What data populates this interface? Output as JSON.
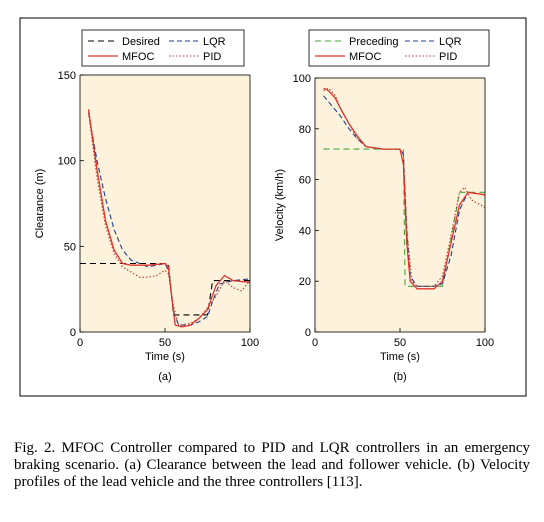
{
  "caption": "Fig. 2.  MFOC Controller compared to PID and LQR controllers in an emergency braking scenario. (a) Clearance between the lead and follower vehicle. (b) Velocity profiles of the lead vehicle and the three controllers [113].",
  "colors": {
    "plot_bg": "#fdf3dc",
    "desired": "#000000",
    "lqr": "#1f3f91",
    "mfoc": "#e0342a",
    "pid": "#b93a30",
    "preceding": "#49a63a"
  },
  "chart_data": [
    {
      "type": "line",
      "panel_label": "(a)",
      "xlabel": "Time (s)",
      "ylabel": "Clearance (m)",
      "xlim": [
        0,
        100
      ],
      "ylim": [
        0,
        150
      ],
      "xticks": [
        0,
        50,
        100
      ],
      "yticks": [
        0,
        50,
        100,
        150
      ],
      "grid": false,
      "legend_position": "top",
      "series": [
        {
          "name": "Desired",
          "color": "#000000",
          "dash": "6,4",
          "x": [
            0,
            52,
            55,
            75,
            78,
            100
          ],
          "y": [
            40,
            40,
            10,
            10,
            30,
            30
          ]
        },
        {
          "name": "LQR",
          "color": "#1f3f91",
          "dash": "5,3",
          "x": [
            5,
            10,
            15,
            20,
            25,
            30,
            40,
            45,
            50,
            52,
            55,
            58,
            65,
            70,
            75,
            78,
            82,
            90,
            100
          ],
          "y": [
            128,
            100,
            78,
            60,
            48,
            42,
            38,
            39,
            40,
            36,
            12,
            4,
            4,
            6,
            9,
            18,
            28,
            30,
            31
          ]
        },
        {
          "name": "MFOC",
          "color": "#e0342a",
          "dash": "",
          "x": [
            5,
            10,
            15,
            20,
            25,
            30,
            40,
            50,
            52,
            54,
            56,
            60,
            65,
            70,
            75,
            80,
            85,
            90,
            100
          ],
          "y": [
            130,
            95,
            65,
            48,
            40,
            39,
            39,
            40,
            38,
            20,
            4,
            3,
            4,
            8,
            13,
            27,
            33,
            30,
            29
          ]
        },
        {
          "name": "PID",
          "color": "#b93a30",
          "dash": "1.5,2",
          "x": [
            5,
            10,
            15,
            20,
            25,
            30,
            35,
            40,
            45,
            50,
            52,
            55,
            58,
            65,
            70,
            75,
            80,
            85,
            90,
            95,
            100
          ],
          "y": [
            128,
            90,
            62,
            46,
            38,
            35,
            32,
            32,
            33,
            36,
            34,
            15,
            4,
            5,
            8,
            14,
            21,
            30,
            26,
            24,
            30
          ]
        }
      ]
    },
    {
      "type": "line",
      "panel_label": "(b)",
      "xlabel": "Time (s)",
      "ylabel": "Velocity (km/h)",
      "xlim": [
        0,
        100
      ],
      "ylim": [
        0,
        100
      ],
      "xticks": [
        0,
        50,
        100
      ],
      "yticks": [
        0,
        20,
        40,
        60,
        80,
        100
      ],
      "grid": false,
      "legend_position": "top",
      "series": [
        {
          "name": "Preceding",
          "color": "#49a63a",
          "dash": "6,4",
          "x": [
            5,
            52,
            53,
            75,
            85,
            100
          ],
          "y": [
            72,
            72,
            18,
            18,
            55,
            55
          ]
        },
        {
          "name": "LQR",
          "color": "#1f3f91",
          "dash": "5,3",
          "x": [
            5,
            10,
            15,
            20,
            25,
            30,
            40,
            50,
            52,
            54,
            56,
            60,
            70,
            75,
            80,
            85,
            90,
            100
          ],
          "y": [
            93,
            89,
            85,
            80,
            76,
            73,
            72,
            72,
            70,
            40,
            22,
            18,
            18,
            19,
            30,
            48,
            55,
            54
          ]
        },
        {
          "name": "MFOC",
          "color": "#e0342a",
          "dash": "",
          "x": [
            5,
            8,
            12,
            15,
            20,
            25,
            30,
            40,
            50,
            52,
            54,
            56,
            60,
            65,
            70,
            75,
            80,
            85,
            90,
            100
          ],
          "y": [
            96,
            95,
            92,
            88,
            82,
            77,
            73,
            72,
            72,
            66,
            35,
            20,
            17,
            17,
            17,
            20,
            35,
            50,
            55,
            54
          ]
        },
        {
          "name": "PID",
          "color": "#b93a30",
          "dash": "1.5,2",
          "x": [
            5,
            8,
            12,
            15,
            20,
            25,
            30,
            40,
            50,
            52,
            54,
            57,
            60,
            70,
            75,
            80,
            85,
            88,
            92,
            100
          ],
          "y": [
            95,
            96,
            93,
            88,
            82,
            76,
            73,
            72,
            72,
            70,
            40,
            20,
            18,
            18,
            22,
            38,
            55,
            57,
            52,
            49
          ]
        }
      ]
    }
  ]
}
